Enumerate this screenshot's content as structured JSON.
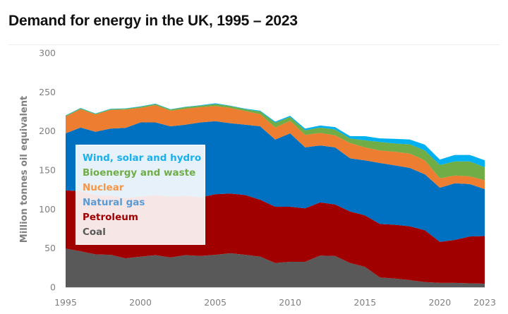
{
  "chart_data": {
    "type": "area",
    "stacked": true,
    "title": "Demand for energy in the UK, 1995 – 2023",
    "xlabel": "",
    "ylabel": "Million tonnes oil equivalent",
    "ylim": [
      0,
      300
    ],
    "yticks": [
      "0",
      "50",
      "100",
      "150",
      "200",
      "250",
      "300"
    ],
    "xticks": [
      "1995",
      "2000",
      "2005",
      "2010",
      "2015",
      "2020",
      "2023"
    ],
    "grid": false,
    "legend_position": "center-left",
    "x": [
      1995,
      1996,
      1997,
      1998,
      1999,
      2000,
      2001,
      2002,
      2003,
      2004,
      2005,
      2006,
      2007,
      2008,
      2009,
      2010,
      2011,
      2012,
      2013,
      2014,
      2015,
      2016,
      2017,
      2018,
      2019,
      2020,
      2021,
      2022,
      2023
    ],
    "series": [
      {
        "name": "Coal",
        "color": "#595959",
        "values": [
          49.5,
          46,
          42,
          41.5,
          37,
          39,
          41,
          38,
          41,
          40,
          41.5,
          43.5,
          41.5,
          39,
          31,
          32.5,
          32.5,
          40.5,
          40,
          31,
          26,
          12.5,
          11,
          9,
          6.5,
          5.5,
          5.5,
          5,
          4.5
        ]
      },
      {
        "name": "Petroleum",
        "color": "#a00000",
        "values": [
          74.5,
          77,
          76,
          75.5,
          77,
          77,
          77,
          78,
          76,
          75,
          77.5,
          76.5,
          76.5,
          73,
          72,
          70.5,
          68.5,
          68,
          66,
          66,
          66,
          68.5,
          69,
          69,
          66.5,
          52.5,
          55,
          60,
          61
        ]
      },
      {
        "name": "Natural gas",
        "color": "#0070c0",
        "values": [
          73,
          81.5,
          81,
          86,
          90,
          95,
          93,
          90,
          91,
          96,
          93.5,
          90,
          90,
          94,
          86,
          94,
          78,
          73,
          73,
          68,
          70.5,
          78,
          76,
          74.7,
          71.6,
          69.4,
          72.5,
          67,
          60.1
        ]
      },
      {
        "name": "Nuclear",
        "color": "#ed7d31",
        "values": [
          21.5,
          23.5,
          22,
          24,
          23.5,
          18.5,
          22,
          20,
          20.5,
          19.5,
          19.5,
          19.5,
          17.5,
          15.5,
          15.5,
          16,
          16,
          16,
          15.5,
          19.5,
          16.5,
          16,
          17.5,
          18.3,
          18,
          12,
          10,
          10,
          11.4
        ]
      },
      {
        "name": "Bioenergy and waste",
        "color": "#70ad47",
        "values": [
          1,
          1,
          1,
          1,
          1,
          1.5,
          1.5,
          1.5,
          2,
          2,
          2.5,
          2.5,
          2.5,
          3.5,
          6,
          5,
          6,
          7,
          7.5,
          6,
          9,
          11,
          10.5,
          12,
          12.4,
          17.2,
          18,
          19,
          16.6
        ]
      },
      {
        "name": "Wind, solar and hydro",
        "color": "#00b0f0",
        "values": [
          0.5,
          0.5,
          0.5,
          0.5,
          0.5,
          0.5,
          0.5,
          0.5,
          0.5,
          0.5,
          1,
          0.5,
          0.6,
          1,
          1.5,
          1.5,
          2,
          2.5,
          3,
          3,
          5.4,
          4.6,
          6,
          6,
          7.5,
          6.9,
          8.3,
          8.3,
          9
        ]
      }
    ]
  },
  "legend": {
    "items": [
      {
        "label": "Wind, solar and hydro",
        "color": "#1ab0ee"
      },
      {
        "label": "Bioenergy and waste",
        "color": "#70ad47"
      },
      {
        "label": "Nuclear",
        "color": "#f79646"
      },
      {
        "label": "Natural gas",
        "color": "#5b9bd5"
      },
      {
        "label": "Petroleum",
        "color": "#a00000"
      },
      {
        "label": "Coal",
        "color": "#595959"
      }
    ]
  }
}
